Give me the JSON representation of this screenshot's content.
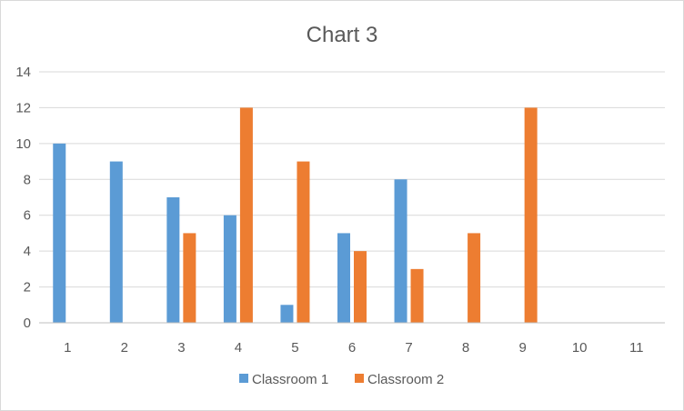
{
  "chart_data": {
    "type": "bar",
    "title": "Chart 3",
    "xlabel": "",
    "ylabel": "",
    "categories": [
      "1",
      "2",
      "3",
      "4",
      "5",
      "6",
      "7",
      "8",
      "9",
      "10",
      "11"
    ],
    "series": [
      {
        "name": "Classroom 1",
        "color": "#5b9bd5",
        "values": [
          10,
          9,
          7,
          6,
          1,
          5,
          8,
          0,
          0,
          0,
          0
        ]
      },
      {
        "name": "Classroom 2",
        "color": "#ed7d31",
        "values": [
          0,
          0,
          5,
          12,
          9,
          4,
          3,
          5,
          12,
          0,
          0
        ]
      }
    ],
    "ylim": [
      0,
      14
    ],
    "yticks": [
      0,
      2,
      4,
      6,
      8,
      10,
      12,
      14
    ],
    "grid": true,
    "legend_position": "bottom"
  }
}
